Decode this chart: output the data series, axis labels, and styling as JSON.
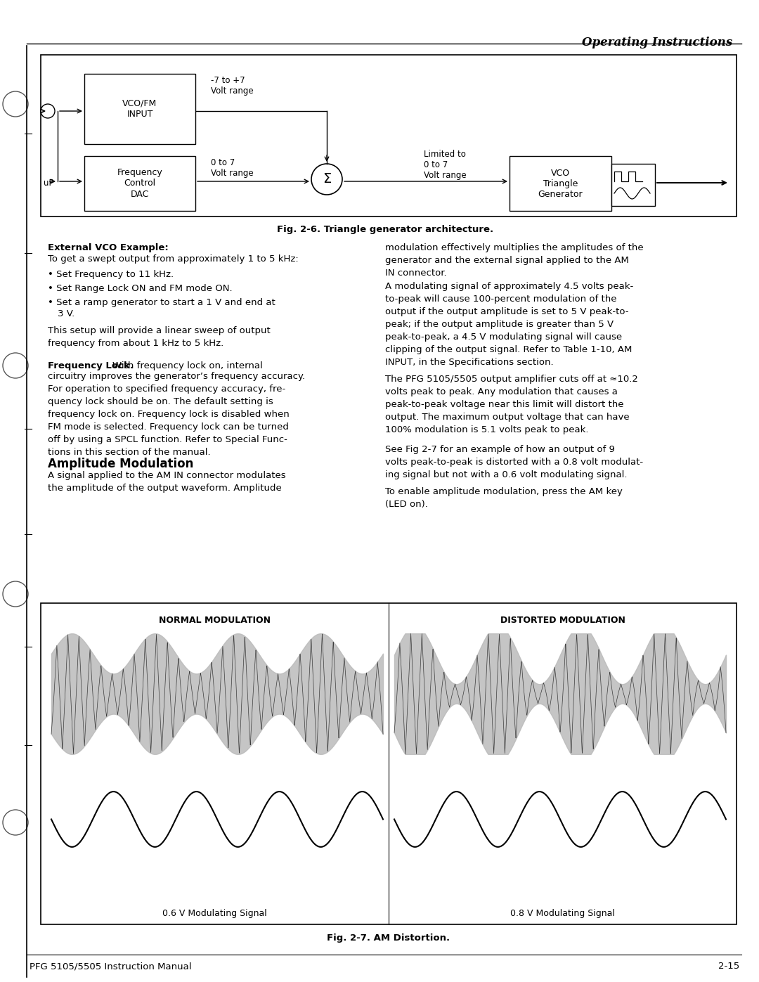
{
  "page_title": "Operating Instructions",
  "fig1_caption": "Fig. 2-6. Triangle generator architecture.",
  "fig2_caption": "Fig. 2-7. AM Distortion.",
  "footer_left": "PFG 5105/5505 Instruction Manual",
  "footer_right": "2-15",
  "diagram_label_vco_fm": "VCO/FM\nINPUT",
  "diagram_label_freq": "Frequency\nControl\nDAC",
  "diagram_label_vco_tri": "VCO\nTriangle\nGenerator",
  "diagram_label_range1": "-7 to +7\nVolt range",
  "diagram_label_range2": "0 to 7\nVolt range",
  "diagram_label_limited": "Limited to\n0 to 7\nVolt range",
  "diagram_label_up": "uP",
  "normal_mod_label": "NORMAL MODULATION",
  "distorted_mod_label": "DISTORTED MODULATION",
  "mod_signal_06": "0.6 V Modulating Signal",
  "mod_signal_08": "0.8 V Modulating Signal",
  "bg_color": "#ffffff",
  "text_color": "#000000",
  "sec1_title": "External VCO Example:",
  "sec1_line1": "To get a swept output from approximately 1 to 5 kHz:",
  "sec1_b1": "Set Frequency to 11 kHz.",
  "sec1_b2": "Set Range Lock ON and FM mode ON.",
  "sec1_b3": "Set a ramp generator to start a 1 V and end at",
  "sec1_b3b": "3 V.",
  "sec1_para": "This setup will provide a linear sweep of output\nfrequency from about 1 kHz to 5 kHz.",
  "sec2_title": "Frequency Lock.",
  "sec2_inline": "With frequency lock on, internal",
  "sec2_body": "circuitry improves the generator’s frequency accuracy.\nFor operation to specified frequency accuracy, fre-\nquency lock should be on. The default setting is\nfrequency lock on. Frequency lock is disabled when\nFM mode is selected. Frequency lock can be turned\noff by using a SPCL function. Refer to Special Func-\ntions in this section of the manual.",
  "sec3_title": "Amplitude Modulation",
  "sec3_left": "A signal applied to the AM IN connector modulates\nthe amplitude of the output waveform. Amplitude",
  "rcol_1": "modulation effectively multiplies the amplitudes of the\ngenerator and the external signal applied to the AM\nIN connector.",
  "rcol_2": "A modulating signal of approximately 4.5 volts peak-\nto-peak will cause 100-percent modulation of the\noutput if the output amplitude is set to 5 V peak-to-\npeak; if the output amplitude is greater than 5 V\npeak-to-peak, a 4.5 V modulating signal will cause\nclipping of the output signal. Refer to Table 1-10, AM\nINPUT, in the Specifications section.",
  "rcol_3": "The PFG 5105/5505 output amplifier cuts off at ≈10.2\nvolts peak to peak. Any modulation that causes a\npeak-to-peak voltage near this limit will distort the\noutput. The maximum output voltage that can have\n100% modulation is 5.1 volts peak to peak.",
  "rcol_4": "See Fig 2-7 for an example of how an output of 9\nvolts peak-to-peak is distorted with a 0.8 volt modulat-\ning signal but not with a 0.6 volt modulating signal.",
  "rcol_5": "To enable amplitude modulation, press the AM key\n(LED on)."
}
